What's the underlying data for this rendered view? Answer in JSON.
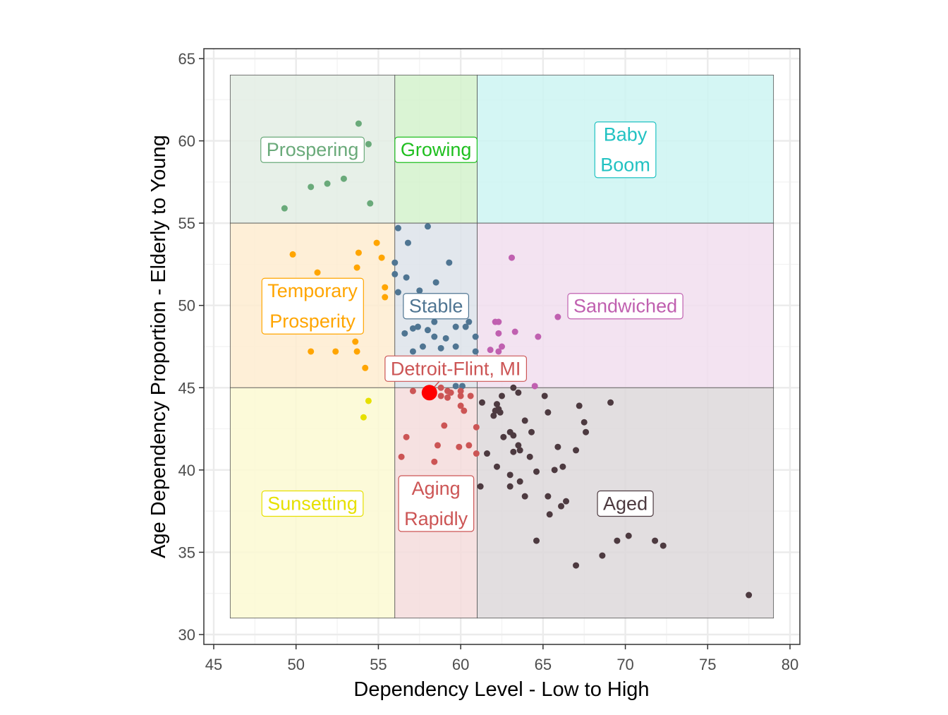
{
  "chart_data": {
    "type": "scatter",
    "xlabel": "Dependency Level - Low to High",
    "ylabel": "Age Dependency Proportion - Elderly to Young",
    "xlim": [
      44.4,
      80.6
    ],
    "ylim": [
      29.4,
      65.6
    ],
    "x_ticks": [
      45,
      50,
      55,
      60,
      65,
      70,
      75,
      80
    ],
    "y_ticks": [
      30,
      35,
      40,
      45,
      50,
      55,
      60,
      65
    ],
    "grid": true,
    "regions": [
      {
        "name": "Prospering",
        "label": [
          "Prospering"
        ],
        "x": [
          46,
          56
        ],
        "y": [
          55,
          64
        ],
        "label_at": [
          51,
          59.5
        ],
        "color": "#6aaa7a",
        "fill": "#e3ede4"
      },
      {
        "name": "Growing",
        "label": [
          "Growing"
        ],
        "x": [
          56,
          61
        ],
        "y": [
          55,
          64
        ],
        "label_at": [
          58.5,
          59.5
        ],
        "color": "#1fbf1f",
        "fill": "#d4f2cc"
      },
      {
        "name": "Baby Boom",
        "label": [
          "Baby",
          "Boom"
        ],
        "x": [
          61,
          79
        ],
        "y": [
          55,
          64
        ],
        "label_at": [
          70,
          59.5
        ],
        "color": "#22c2c2",
        "fill": "#cdf4f2"
      },
      {
        "name": "Temporary Prosperity",
        "label": [
          "Temporary",
          "Prosperity"
        ],
        "x": [
          46,
          56
        ],
        "y": [
          45,
          55
        ],
        "label_at": [
          51,
          50
        ],
        "color": "#ffa500",
        "fill": "#feecd0"
      },
      {
        "name": "Stable",
        "label": [
          "Stable"
        ],
        "x": [
          56,
          61
        ],
        "y": [
          45,
          55
        ],
        "label_at": [
          58.5,
          50
        ],
        "color": "#4f7592",
        "fill": "#dde3ea"
      },
      {
        "name": "Sandwiched",
        "label": [
          "Sandwiched"
        ],
        "x": [
          61,
          79
        ],
        "y": [
          45,
          55
        ],
        "label_at": [
          70,
          50
        ],
        "color": "#c060b0",
        "fill": "#f1deee"
      },
      {
        "name": "Sunsetting",
        "label": [
          "Sunsetting"
        ],
        "x": [
          46,
          56
        ],
        "y": [
          31,
          45
        ],
        "label_at": [
          51,
          38
        ],
        "color": "#e6e000",
        "fill": "#fcf9d2"
      },
      {
        "name": "Aging Rapidly",
        "label": [
          "Aging",
          "Rapidly"
        ],
        "x": [
          56,
          61
        ],
        "y": [
          31,
          45
        ],
        "label_at": [
          58.5,
          38
        ],
        "color": "#cc5555",
        "fill": "#f4dcdc"
      },
      {
        "name": "Aged",
        "label": [
          "Aged"
        ],
        "x": [
          61,
          79
        ],
        "y": [
          31,
          45
        ],
        "label_at": [
          70,
          38
        ],
        "color": "#4d3a40",
        "fill": "#ddd8da"
      }
    ],
    "series": [
      {
        "region": "Prospering",
        "color": "#6aaa7a",
        "points": [
          [
            53.8,
            61.05
          ],
          [
            54.4,
            59.8
          ],
          [
            50.9,
            57.2
          ],
          [
            51.9,
            57.4
          ],
          [
            52.9,
            57.7
          ],
          [
            54.5,
            56.2
          ],
          [
            49.3,
            55.9
          ]
        ]
      },
      {
        "region": "Temporary Prosperity",
        "color": "#ffa500",
        "points": [
          [
            49.8,
            53.1
          ],
          [
            51.3,
            52.0
          ],
          [
            53.8,
            53.2
          ],
          [
            53.7,
            52.3
          ],
          [
            54.9,
            53.8
          ],
          [
            55.2,
            52.9
          ],
          [
            55.4,
            51.1
          ],
          [
            55.4,
            50.5
          ],
          [
            50.9,
            47.2
          ],
          [
            52.4,
            47.2
          ],
          [
            53.7,
            47.2
          ],
          [
            53.6,
            47.8
          ],
          [
            54.2,
            46.2
          ]
        ]
      },
      {
        "region": "Sunsetting",
        "color": "#e6e000",
        "points": [
          [
            54.4,
            44.2
          ],
          [
            54.1,
            43.2
          ]
        ]
      },
      {
        "region": "Stable",
        "color": "#4f7592",
        "points": [
          [
            56.2,
            54.7
          ],
          [
            58.0,
            54.8
          ],
          [
            56.8,
            53.8
          ],
          [
            59.3,
            52.6
          ],
          [
            56.0,
            52.6
          ],
          [
            56.0,
            51.9
          ],
          [
            56.7,
            51.7
          ],
          [
            58.5,
            51.4
          ],
          [
            57.5,
            50.9
          ],
          [
            56.2,
            50.8
          ],
          [
            58.4,
            49.0
          ],
          [
            60.5,
            49.0
          ],
          [
            60.3,
            48.7
          ],
          [
            59.7,
            48.7
          ],
          [
            57.1,
            48.6
          ],
          [
            57.4,
            48.7
          ],
          [
            56.6,
            48.3
          ],
          [
            58.0,
            48.5
          ],
          [
            58.4,
            48.1
          ],
          [
            59.1,
            48.0
          ],
          [
            60.9,
            48.1
          ],
          [
            57.7,
            47.5
          ],
          [
            58.8,
            47.4
          ],
          [
            59.7,
            47.5
          ],
          [
            57.1,
            47.2
          ],
          [
            60.9,
            47.2
          ],
          [
            59.7,
            45.1
          ],
          [
            60.1,
            45.1
          ]
        ]
      },
      {
        "region": "Sandwiched",
        "color": "#c060b0",
        "points": [
          [
            63.1,
            52.9
          ],
          [
            65.9,
            49.3
          ],
          [
            62.1,
            49.0
          ],
          [
            62.3,
            49.0
          ],
          [
            62.3,
            48.3
          ],
          [
            63.3,
            48.4
          ],
          [
            64.7,
            48.1
          ],
          [
            62.5,
            47.5
          ],
          [
            61.8,
            47.3
          ],
          [
            62.3,
            47.2
          ],
          [
            64.5,
            45.1
          ]
        ]
      },
      {
        "region": "Aging Rapidly",
        "color": "#cc5555",
        "points": [
          [
            57.1,
            44.8
          ],
          [
            58.8,
            45.0
          ],
          [
            59.2,
            44.8
          ],
          [
            59.4,
            44.7
          ],
          [
            58.8,
            44.5
          ],
          [
            59.2,
            44.4
          ],
          [
            60.0,
            44.8
          ],
          [
            60.0,
            44.5
          ],
          [
            60.6,
            44.5
          ],
          [
            60.0,
            43.9
          ],
          [
            60.2,
            43.6
          ],
          [
            59.0,
            42.7
          ],
          [
            60.95,
            42.6
          ],
          [
            56.7,
            42.0
          ],
          [
            58.6,
            41.5
          ],
          [
            59.9,
            41.4
          ],
          [
            60.5,
            41.5
          ],
          [
            60.95,
            41.0
          ],
          [
            56.4,
            40.8
          ],
          [
            58.4,
            40.5
          ]
        ]
      },
      {
        "region": "Aged",
        "color": "#4d3a40",
        "points": [
          [
            63.2,
            45.0
          ],
          [
            63.5,
            44.7
          ],
          [
            62.5,
            44.5
          ],
          [
            65.1,
            44.5
          ],
          [
            61.3,
            44.1
          ],
          [
            62.2,
            44.0
          ],
          [
            62.3,
            43.7
          ],
          [
            62.1,
            43.6
          ],
          [
            62.4,
            43.5
          ],
          [
            62.0,
            43.3
          ],
          [
            65.3,
            43.5
          ],
          [
            67.2,
            43.9
          ],
          [
            69.1,
            44.1
          ],
          [
            63.9,
            43.0
          ],
          [
            67.5,
            42.9
          ],
          [
            67.6,
            42.3
          ],
          [
            64.3,
            42.3
          ],
          [
            63.0,
            42.3
          ],
          [
            63.2,
            42.1
          ],
          [
            62.6,
            42.0
          ],
          [
            63.5,
            41.5
          ],
          [
            63.6,
            41.2
          ],
          [
            63.2,
            41.1
          ],
          [
            65.9,
            41.4
          ],
          [
            67.0,
            41.2
          ],
          [
            61.6,
            41.0
          ],
          [
            64.2,
            40.8
          ],
          [
            62.2,
            40.2
          ],
          [
            66.2,
            40.2
          ],
          [
            65.7,
            40.0
          ],
          [
            63.0,
            39.7
          ],
          [
            64.6,
            39.9
          ],
          [
            63.6,
            39.3
          ],
          [
            63.0,
            39.0
          ],
          [
            61.2,
            39.0
          ],
          [
            63.9,
            38.4
          ],
          [
            65.3,
            38.4
          ],
          [
            66.4,
            38.1
          ],
          [
            66.1,
            37.8
          ],
          [
            65.4,
            37.3
          ],
          [
            64.6,
            35.7
          ],
          [
            67.0,
            34.2
          ],
          [
            68.6,
            34.8
          ],
          [
            69.5,
            35.7
          ],
          [
            70.2,
            36.0
          ],
          [
            71.8,
            35.7
          ],
          [
            72.3,
            35.4
          ],
          [
            77.5,
            32.4
          ]
        ]
      }
    ],
    "highlight": {
      "label": "Detroit-Flint, MI",
      "point": [
        58.1,
        44.7
      ],
      "label_at": [
        59.7,
        46.2
      ],
      "color": "#ff0000",
      "label_color": "#cc5555"
    }
  }
}
